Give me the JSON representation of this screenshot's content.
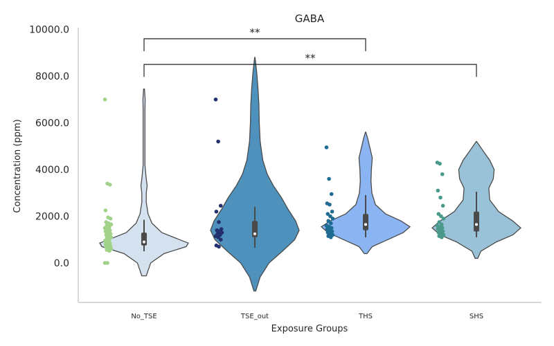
{
  "chart_data": {
    "type": "violin",
    "title": "GABA",
    "xlabel": "Exposure Groups",
    "ylabel": "Concentration (ppm)",
    "ylim": [
      -1800,
      10200
    ],
    "yticks": [
      0,
      2000,
      4000,
      6000,
      8000,
      10000
    ],
    "ytick_labels": [
      "0.0",
      "2000.0",
      "4000.0",
      "6000.0",
      "8000.0",
      "10000.0"
    ],
    "grid": false,
    "categories": [
      "No_TSE",
      "TSE_out",
      "THS",
      "SHS"
    ],
    "groups": [
      {
        "name": "No_TSE",
        "violin_color": "#d4e2f0",
        "point_color": "#a1d28a",
        "violin_range": [
          -550,
          7450
        ],
        "density": [
          [
            -550,
            0.05
          ],
          [
            0,
            0.15
          ],
          [
            400,
            0.45
          ],
          [
            700,
            0.95
          ],
          [
            850,
            1.0
          ],
          [
            1000,
            0.8
          ],
          [
            1300,
            0.4
          ],
          [
            1700,
            0.18
          ],
          [
            2100,
            0.09
          ],
          [
            2600,
            0.05
          ],
          [
            3000,
            0.05
          ],
          [
            3300,
            0.07
          ],
          [
            3600,
            0.05
          ],
          [
            4200,
            0.02
          ],
          [
            5500,
            0.02
          ],
          [
            6500,
            0.02
          ],
          [
            7000,
            0.025
          ],
          [
            7450,
            0.01
          ]
        ],
        "box": {
          "q1": 750,
          "median": 900,
          "q3": 1300,
          "whisker_low": 500,
          "whisker_high": 1850
        },
        "points": [
          7000,
          3400,
          3350,
          2250,
          1950,
          1900,
          1750,
          1700,
          1650,
          1600,
          1550,
          1500,
          1450,
          1400,
          1350,
          1300,
          1250,
          1200,
          1150,
          1100,
          1050,
          1000,
          950,
          900,
          850,
          800,
          760,
          720,
          680,
          640,
          600,
          560,
          520,
          0,
          0
        ]
      },
      {
        "name": "TSE_out",
        "violin_color": "#4f91bd",
        "point_color": "#23306e",
        "violin_range": [
          -1200,
          8800
        ],
        "density": [
          [
            -1200,
            0.02
          ],
          [
            -600,
            0.12
          ],
          [
            0,
            0.32
          ],
          [
            500,
            0.62
          ],
          [
            1000,
            0.9
          ],
          [
            1400,
            1.0
          ],
          [
            1800,
            0.92
          ],
          [
            2300,
            0.75
          ],
          [
            2800,
            0.6
          ],
          [
            3300,
            0.42
          ],
          [
            3800,
            0.28
          ],
          [
            4400,
            0.18
          ],
          [
            5200,
            0.12
          ],
          [
            6000,
            0.1
          ],
          [
            6800,
            0.09
          ],
          [
            7500,
            0.07
          ],
          [
            8200,
            0.04
          ],
          [
            8800,
            0.005
          ]
        ],
        "box": {
          "q1": 1100,
          "median": 1250,
          "q3": 1800,
          "whisker_low": 650,
          "whisker_high": 2400
        },
        "points": [
          7000,
          5200,
          2450,
          2200,
          1750,
          1450,
          1400,
          1350,
          1300,
          1250,
          1200,
          1150,
          1100,
          1000,
          750,
          700
        ]
      },
      {
        "name": "THS",
        "violin_color": "#8ab4f2",
        "point_color": "#1f6b93",
        "violin_range": [
          400,
          5600
        ],
        "density": [
          [
            400,
            0.03
          ],
          [
            700,
            0.15
          ],
          [
            1000,
            0.5
          ],
          [
            1300,
            0.85
          ],
          [
            1550,
            1.0
          ],
          [
            1800,
            0.8
          ],
          [
            2100,
            0.45
          ],
          [
            2500,
            0.22
          ],
          [
            3000,
            0.14
          ],
          [
            3500,
            0.12
          ],
          [
            4000,
            0.13
          ],
          [
            4500,
            0.15
          ],
          [
            4900,
            0.1
          ],
          [
            5300,
            0.05
          ],
          [
            5600,
            0.005
          ]
        ],
        "box": {
          "q1": 1400,
          "median": 1650,
          "q3": 2100,
          "whisker_low": 1100,
          "whisker_high": 2900
        },
        "points": [
          4950,
          3600,
          2950,
          2550,
          2500,
          2200,
          2100,
          2000,
          1900,
          1800,
          1700,
          1600,
          1550,
          1500,
          1450,
          1400,
          1350,
          1300,
          1250,
          1200,
          1150,
          1100
        ]
      },
      {
        "name": "SHS",
        "violin_color": "#99c2d8",
        "point_color": "#4a9a8c",
        "violin_range": [
          200,
          5200
        ],
        "density": [
          [
            200,
            0.03
          ],
          [
            500,
            0.1
          ],
          [
            900,
            0.45
          ],
          [
            1200,
            0.82
          ],
          [
            1500,
            1.0
          ],
          [
            1800,
            0.82
          ],
          [
            2200,
            0.5
          ],
          [
            2700,
            0.3
          ],
          [
            3200,
            0.28
          ],
          [
            3600,
            0.38
          ],
          [
            4000,
            0.4
          ],
          [
            4400,
            0.3
          ],
          [
            4800,
            0.15
          ],
          [
            5200,
            0.005
          ]
        ],
        "box": {
          "q1": 1350,
          "median": 1650,
          "q3": 2200,
          "whisker_low": 1100,
          "whisker_high": 3050
        },
        "points": [
          4300,
          4250,
          3800,
          3100,
          2800,
          2450,
          2100,
          2000,
          1900,
          1750,
          1650,
          1600,
          1550,
          1500,
          1450,
          1400,
          1350,
          1300,
          1250,
          1200,
          1150,
          1100
        ]
      }
    ],
    "annotations": [
      {
        "from": "No_TSE",
        "to": "THS",
        "label": "**"
      },
      {
        "from": "No_TSE",
        "to": "SHS",
        "label": "**"
      }
    ]
  }
}
